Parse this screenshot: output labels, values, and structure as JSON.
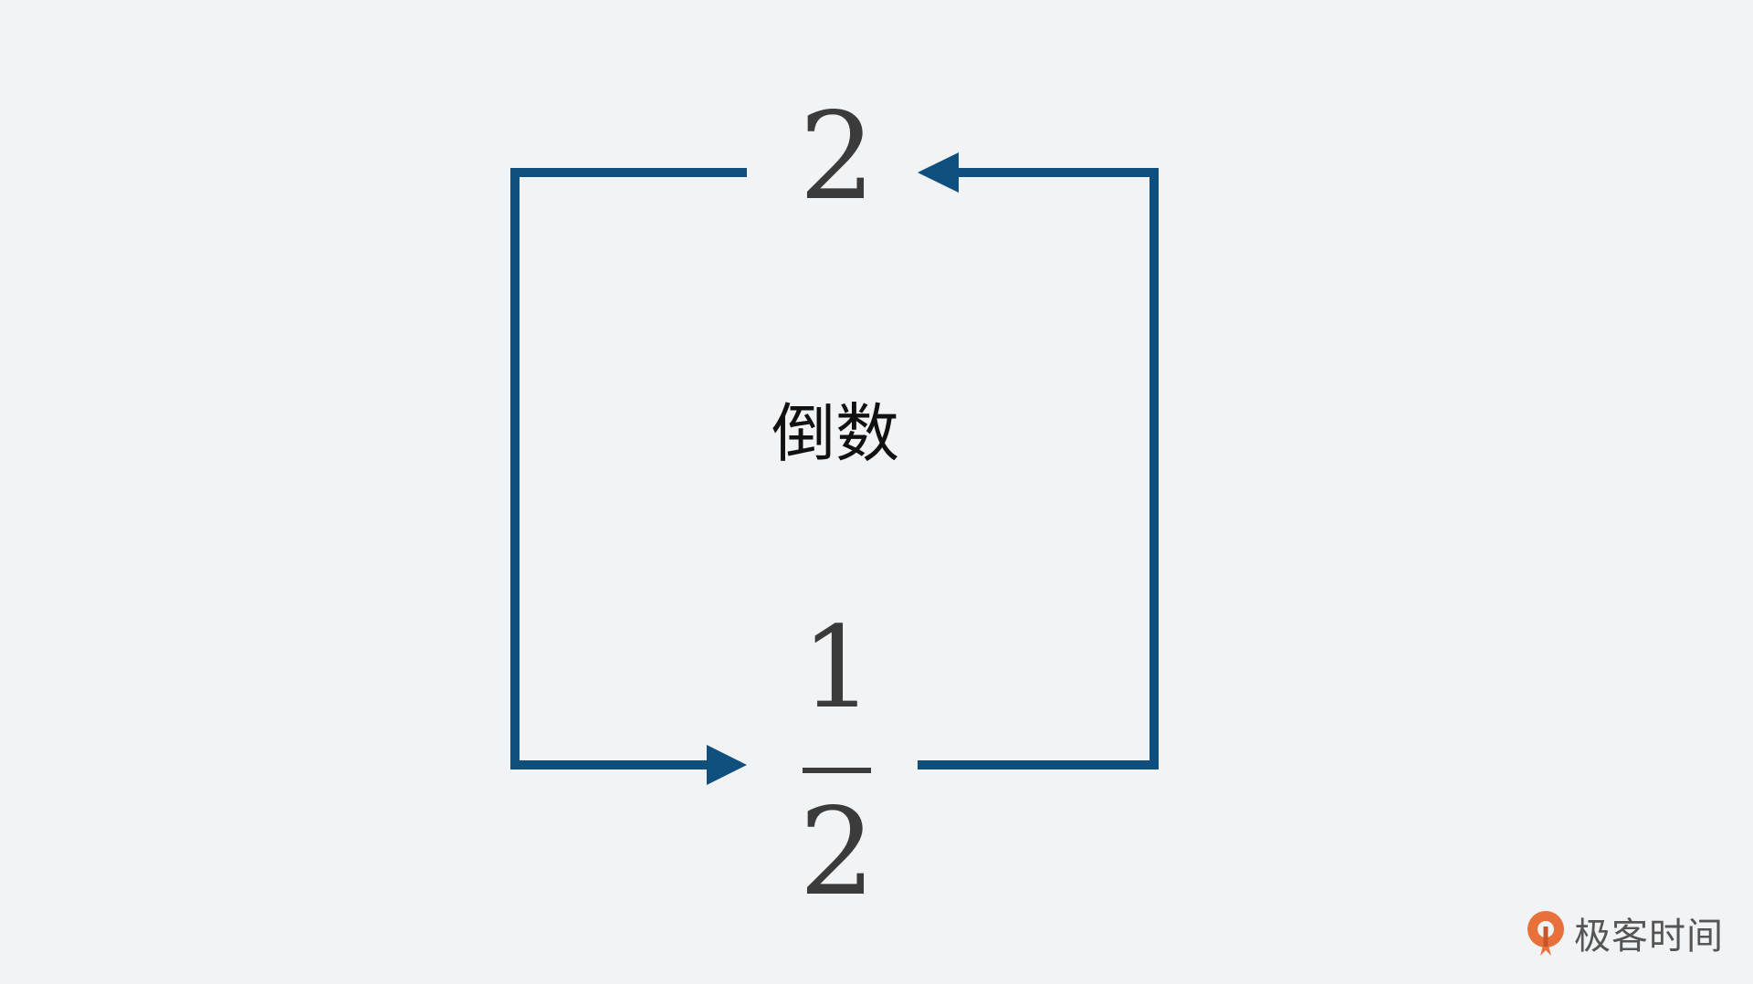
{
  "diagram": {
    "top_value": "2",
    "bottom_fraction": {
      "numerator": "1",
      "denominator": "2"
    },
    "center_label": "倒数",
    "stroke_color": "#0e4f7e",
    "text_color": "#3b3b3b"
  },
  "watermark": {
    "logo_text": "极客时间",
    "icon": "geektime-logo-icon",
    "accent_color": "#e8703a"
  }
}
